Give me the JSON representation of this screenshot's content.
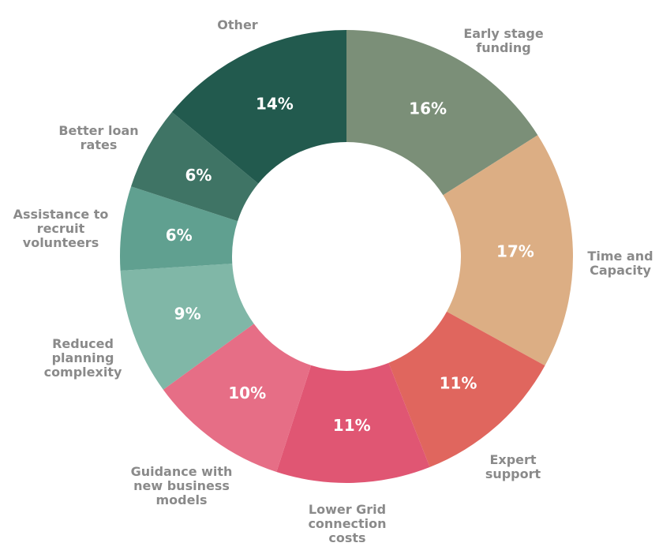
{
  "chart_data": {
    "type": "donut",
    "title": "",
    "unit": "%",
    "slices": [
      {
        "label": "Early stage funding",
        "value": 16,
        "value_label": "16%",
        "color": "#7b8f78"
      },
      {
        "label": "Time and Capacity",
        "value": 17,
        "value_label": "17%",
        "color": "#dcae84"
      },
      {
        "label": "Expert support",
        "value": 11,
        "value_label": "11%",
        "color": "#e0665e"
      },
      {
        "label": "Lower Grid connection costs",
        "value": 11,
        "value_label": "11%",
        "color": "#e05673"
      },
      {
        "label": "Guidance with new business models",
        "value": 10,
        "value_label": "10%",
        "color": "#e66e86"
      },
      {
        "label": "Reduced planning complexity",
        "value": 9,
        "value_label": "9%",
        "color": "#80b7a7"
      },
      {
        "label": "Assistance to recruit volunteers",
        "value": 6,
        "value_label": "6%",
        "color": "#60a090"
      },
      {
        "label": "Better loan rates",
        "value": 6,
        "value_label": "6%",
        "color": "#3f7465"
      },
      {
        "label": "Other",
        "value": 14,
        "value_label": "14%",
        "color": "#225a4e"
      }
    ]
  }
}
